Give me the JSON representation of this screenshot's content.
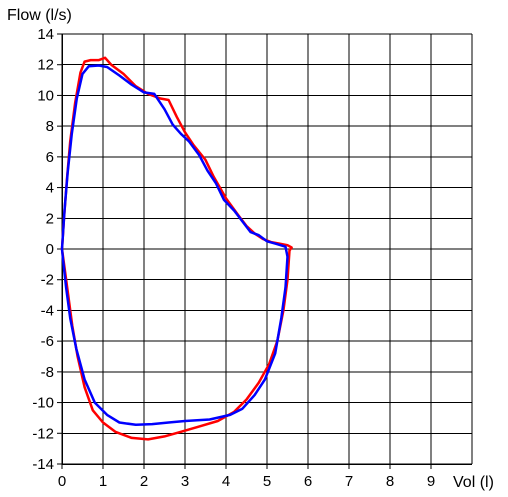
{
  "chart_data": {
    "type": "line",
    "ylabel": "Flow (l/s)",
    "xlabel": "Vol (l)",
    "xlim": [
      0,
      10
    ],
    "ylim": [
      -14,
      14
    ],
    "x_ticks": [
      0,
      1,
      2,
      3,
      4,
      5,
      6,
      7,
      8,
      9
    ],
    "y_ticks": [
      14,
      12,
      10,
      8,
      6,
      4,
      2,
      0,
      -2,
      -4,
      -6,
      -8,
      -10,
      -12,
      -14
    ],
    "grid": true,
    "series": [
      {
        "color": "#ff0000",
        "points": [
          [
            0.0,
            0.0
          ],
          [
            0.05,
            2.0
          ],
          [
            0.12,
            4.5
          ],
          [
            0.2,
            7.0
          ],
          [
            0.32,
            9.5
          ],
          [
            0.45,
            11.5
          ],
          [
            0.55,
            12.2
          ],
          [
            0.7,
            12.3
          ],
          [
            0.9,
            12.3
          ],
          [
            1.05,
            12.45
          ],
          [
            1.2,
            12.0
          ],
          [
            1.5,
            11.4
          ],
          [
            1.8,
            10.6
          ],
          [
            2.1,
            10.1
          ],
          [
            2.4,
            9.8
          ],
          [
            2.6,
            9.7
          ],
          [
            2.8,
            8.6
          ],
          [
            3.0,
            7.6
          ],
          [
            3.2,
            6.8
          ],
          [
            3.5,
            5.8
          ],
          [
            3.7,
            4.7
          ],
          [
            4.0,
            3.3
          ],
          [
            4.3,
            2.2
          ],
          [
            4.5,
            1.5
          ],
          [
            4.7,
            1.0
          ],
          [
            4.9,
            0.65
          ],
          [
            5.1,
            0.45
          ],
          [
            5.3,
            0.35
          ],
          [
            5.5,
            0.25
          ],
          [
            5.6,
            0.1
          ],
          [
            5.55,
            -0.1
          ],
          [
            5.5,
            -2.0
          ],
          [
            5.4,
            -4.0
          ],
          [
            5.25,
            -6.0
          ],
          [
            5.05,
            -7.5
          ],
          [
            4.8,
            -8.7
          ],
          [
            4.5,
            -9.8
          ],
          [
            4.2,
            -10.6
          ],
          [
            3.8,
            -11.2
          ],
          [
            3.3,
            -11.6
          ],
          [
            2.9,
            -11.9
          ],
          [
            2.5,
            -12.2
          ],
          [
            2.1,
            -12.4
          ],
          [
            1.7,
            -12.3
          ],
          [
            1.3,
            -11.9
          ],
          [
            1.0,
            -11.3
          ],
          [
            0.75,
            -10.5
          ],
          [
            0.55,
            -9.0
          ],
          [
            0.38,
            -7.0
          ],
          [
            0.25,
            -5.0
          ],
          [
            0.15,
            -3.0
          ],
          [
            0.06,
            -1.2
          ],
          [
            0.0,
            0.0
          ]
        ]
      },
      {
        "color": "#0000ff",
        "points": [
          [
            0.0,
            0.0
          ],
          [
            0.06,
            2.5
          ],
          [
            0.14,
            5.0
          ],
          [
            0.24,
            7.5
          ],
          [
            0.36,
            9.8
          ],
          [
            0.5,
            11.4
          ],
          [
            0.65,
            11.9
          ],
          [
            0.9,
            11.95
          ],
          [
            1.1,
            11.85
          ],
          [
            1.4,
            11.3
          ],
          [
            1.7,
            10.7
          ],
          [
            2.0,
            10.2
          ],
          [
            2.25,
            10.1
          ],
          [
            2.5,
            9.1
          ],
          [
            2.7,
            8.1
          ],
          [
            2.9,
            7.5
          ],
          [
            3.1,
            7.0
          ],
          [
            3.35,
            6.1
          ],
          [
            3.55,
            5.1
          ],
          [
            3.75,
            4.3
          ],
          [
            3.95,
            3.2
          ],
          [
            4.2,
            2.5
          ],
          [
            4.4,
            1.8
          ],
          [
            4.6,
            1.1
          ],
          [
            4.8,
            0.9
          ],
          [
            5.0,
            0.5
          ],
          [
            5.2,
            0.35
          ],
          [
            5.45,
            0.15
          ],
          [
            5.5,
            -0.5
          ],
          [
            5.45,
            -2.5
          ],
          [
            5.35,
            -4.5
          ],
          [
            5.2,
            -6.8
          ],
          [
            4.95,
            -8.5
          ],
          [
            4.7,
            -9.5
          ],
          [
            4.4,
            -10.4
          ],
          [
            4.1,
            -10.8
          ],
          [
            3.6,
            -11.1
          ],
          [
            3.0,
            -11.2
          ],
          [
            2.6,
            -11.3
          ],
          [
            2.2,
            -11.4
          ],
          [
            1.8,
            -11.45
          ],
          [
            1.4,
            -11.3
          ],
          [
            1.1,
            -10.8
          ],
          [
            0.8,
            -10.0
          ],
          [
            0.55,
            -8.5
          ],
          [
            0.35,
            -6.5
          ],
          [
            0.2,
            -4.5
          ],
          [
            0.1,
            -2.5
          ],
          [
            0.03,
            -0.8
          ],
          [
            0.0,
            0.0
          ]
        ]
      }
    ]
  }
}
